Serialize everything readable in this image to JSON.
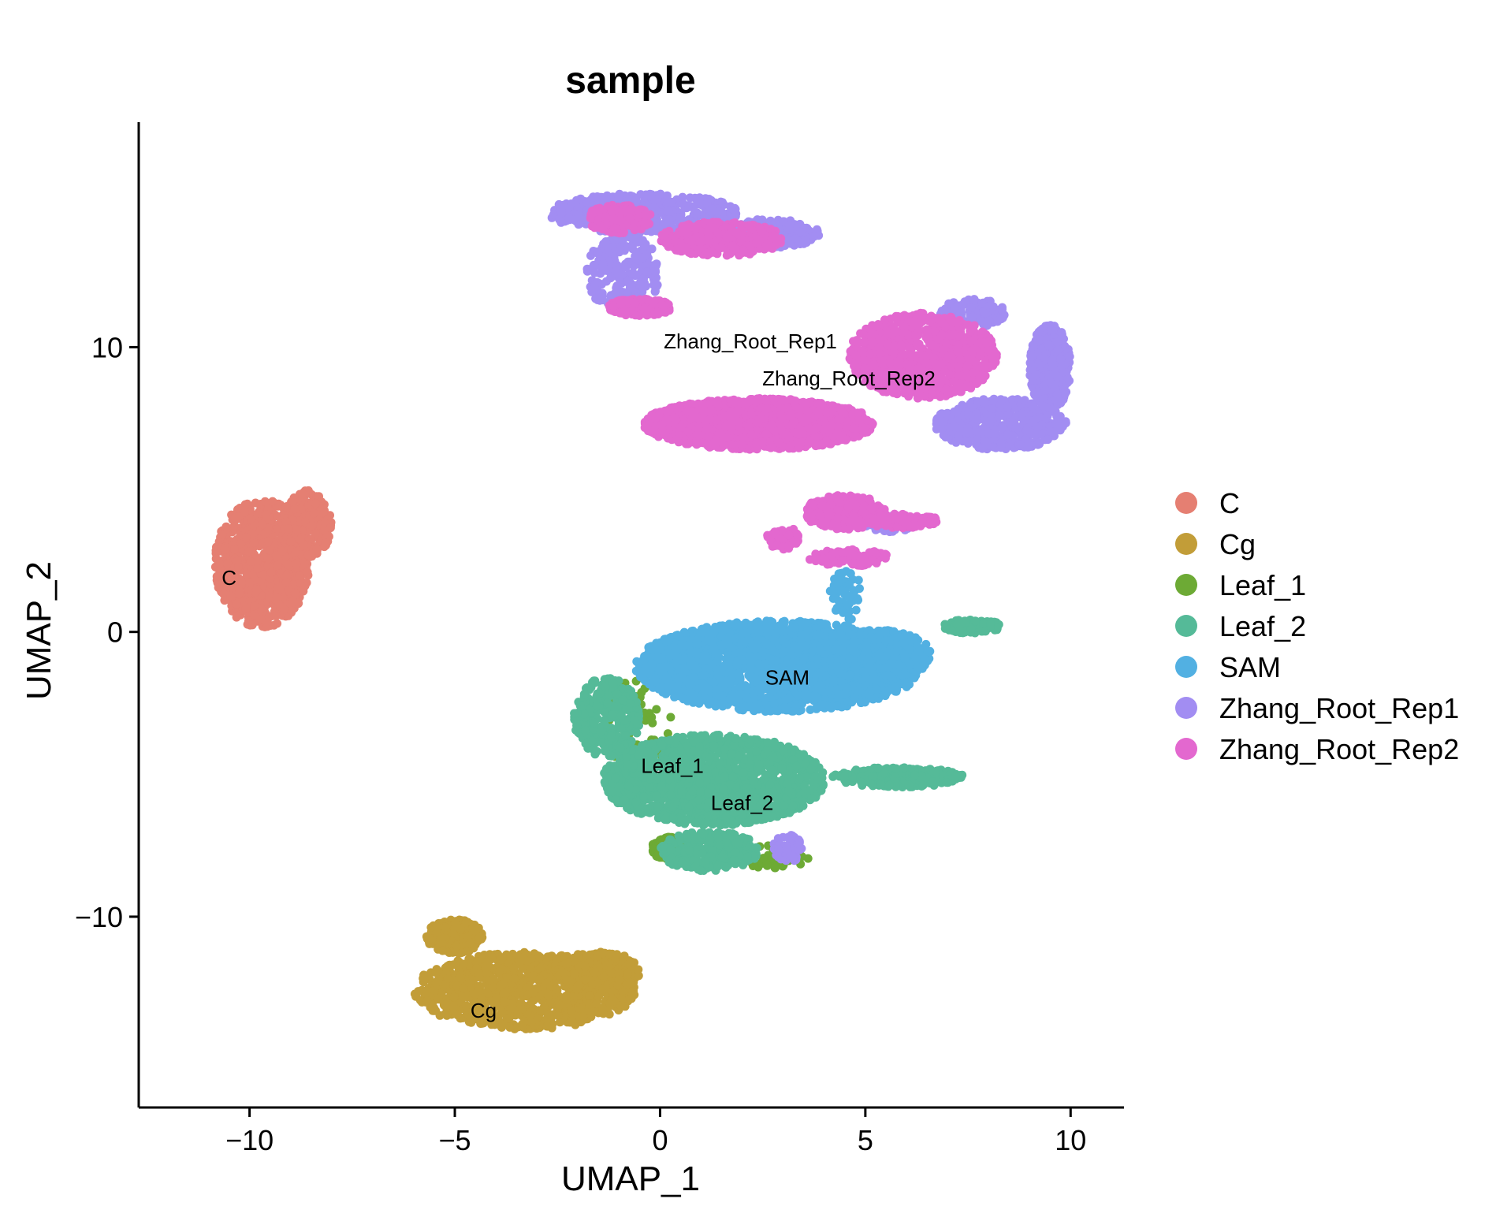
{
  "chart_data": {
    "type": "scatter",
    "title": "sample",
    "xlabel": "UMAP_1",
    "ylabel": "UMAP_2",
    "xlim": [
      -12.7,
      11.3
    ],
    "ylim": [
      -16.7,
      17.9
    ],
    "x_ticks": [
      {
        "value": -10,
        "label": "−10"
      },
      {
        "value": -5,
        "label": "−5"
      },
      {
        "value": 0,
        "label": "0"
      },
      {
        "value": 5,
        "label": "5"
      },
      {
        "value": 10,
        "label": "10"
      }
    ],
    "y_ticks": [
      {
        "value": -10,
        "label": "−10"
      },
      {
        "value": 0,
        "label": "0"
      },
      {
        "value": 10,
        "label": "10"
      }
    ],
    "grid": false,
    "legend_position": "right",
    "series": [
      {
        "name": "C",
        "color": "#E57F72",
        "clusters": [
          {
            "center": [
              -9.7,
              2.4
            ],
            "spread": [
              1.15,
              2.25
            ],
            "n": 900
          },
          {
            "center": [
              -8.6,
              3.8
            ],
            "spread": [
              0.6,
              1.2
            ],
            "n": 250
          }
        ]
      },
      {
        "name": "Cg",
        "color": "#C29D38",
        "clusters": [
          {
            "center": [
              -3.3,
              -12.6
            ],
            "spread": [
              2.7,
              1.35
            ],
            "n": 1000
          },
          {
            "center": [
              -5.0,
              -10.7
            ],
            "spread": [
              0.7,
              0.6
            ],
            "n": 200
          },
          {
            "center": [
              -1.5,
              -12.0
            ],
            "spread": [
              1.0,
              0.8
            ],
            "n": 200
          }
        ]
      },
      {
        "name": "Leaf_1",
        "color": "#6DAA35",
        "clusters": [
          {
            "center": [
              0.2,
              -7.6
            ],
            "spread": [
              0.4,
              0.4
            ],
            "n": 250
          },
          {
            "center": [
              -0.6,
              -3.3
            ],
            "spread": [
              0.9,
              1.6
            ],
            "n": 80
          },
          {
            "center": [
              2.7,
              -7.9
            ],
            "spread": [
              1.0,
              0.4
            ],
            "n": 60
          }
        ]
      },
      {
        "name": "Leaf_2",
        "color": "#55BA98",
        "clusters": [
          {
            "center": [
              1.3,
              -5.2
            ],
            "spread": [
              2.7,
              1.6
            ],
            "n": 1600
          },
          {
            "center": [
              -1.3,
              -3.0
            ],
            "spread": [
              0.8,
              1.4
            ],
            "n": 300
          },
          {
            "center": [
              5.8,
              -5.1
            ],
            "spread": [
              1.6,
              0.35
            ],
            "n": 250
          },
          {
            "center": [
              7.6,
              0.2
            ],
            "spread": [
              0.7,
              0.25
            ],
            "n": 100
          },
          {
            "center": [
              1.2,
              -7.7
            ],
            "spread": [
              1.2,
              0.7
            ],
            "n": 250
          }
        ]
      },
      {
        "name": "SAM",
        "color": "#52B0E2",
        "clusters": [
          {
            "center": [
              2.9,
              -1.2
            ],
            "spread": [
              3.5,
              1.6
            ],
            "n": 2200
          },
          {
            "center": [
              5.2,
              -0.8
            ],
            "spread": [
              1.4,
              0.9
            ],
            "n": 400
          },
          {
            "center": [
              4.5,
              1.3
            ],
            "spread": [
              0.4,
              1.0
            ],
            "n": 60
          }
        ]
      },
      {
        "name": "Zhang_Root_Rep1",
        "color": "#A28DF2",
        "clusters": [
          {
            "center": [
              -0.4,
              14.7
            ],
            "spread": [
              2.3,
              0.7
            ],
            "n": 550
          },
          {
            "center": [
              -0.9,
              12.6
            ],
            "spread": [
              0.9,
              1.4
            ],
            "n": 250
          },
          {
            "center": [
              2.7,
              14.0
            ],
            "spread": [
              1.2,
              0.5
            ],
            "n": 250
          },
          {
            "center": [
              8.3,
              7.3
            ],
            "spread": [
              1.6,
              0.9
            ],
            "n": 450
          },
          {
            "center": [
              9.5,
              9.3
            ],
            "spread": [
              0.5,
              1.5
            ],
            "n": 350
          },
          {
            "center": [
              7.6,
              11.2
            ],
            "spread": [
              0.8,
              0.5
            ],
            "n": 120
          },
          {
            "center": [
              3.1,
              -7.6
            ],
            "spread": [
              0.35,
              0.5
            ],
            "n": 60
          },
          {
            "center": [
              5.6,
              3.8
            ],
            "spread": [
              0.6,
              0.3
            ],
            "n": 80
          }
        ]
      },
      {
        "name": "Zhang_Root_Rep2",
        "color": "#E368CF",
        "clusters": [
          {
            "center": [
              2.4,
              7.3
            ],
            "spread": [
              2.8,
              0.9
            ],
            "n": 1600
          },
          {
            "center": [
              6.4,
              9.7
            ],
            "spread": [
              1.8,
              1.5
            ],
            "n": 900
          },
          {
            "center": [
              1.5,
              13.8
            ],
            "spread": [
              1.5,
              0.6
            ],
            "n": 450
          },
          {
            "center": [
              -1.0,
              14.5
            ],
            "spread": [
              0.8,
              0.5
            ],
            "n": 200
          },
          {
            "center": [
              -0.5,
              11.4
            ],
            "spread": [
              0.8,
              0.3
            ],
            "n": 150
          },
          {
            "center": [
              4.5,
              4.2
            ],
            "spread": [
              1.0,
              0.6
            ],
            "n": 250
          },
          {
            "center": [
              5.9,
              3.9
            ],
            "spread": [
              0.9,
              0.25
            ],
            "n": 150
          },
          {
            "center": [
              3.0,
              3.3
            ],
            "spread": [
              0.4,
              0.4
            ],
            "n": 60
          },
          {
            "center": [
              4.6,
              2.6
            ],
            "spread": [
              1.0,
              0.3
            ],
            "n": 100
          }
        ]
      }
    ],
    "annotations": [
      {
        "text": "C",
        "x": -10.5,
        "y": 1.9
      },
      {
        "text": "Cg",
        "x": -4.3,
        "y": -13.3
      },
      {
        "text": "Leaf_1",
        "x": 0.3,
        "y": -4.7
      },
      {
        "text": "Leaf_2",
        "x": 2.0,
        "y": -6.0
      },
      {
        "text": "SAM",
        "x": 3.1,
        "y": -1.6
      },
      {
        "text": "Zhang_Root_Rep1",
        "x": 2.2,
        "y": 10.2
      },
      {
        "text": "Zhang_Root_Rep2",
        "x": 4.6,
        "y": 8.9
      }
    ]
  }
}
